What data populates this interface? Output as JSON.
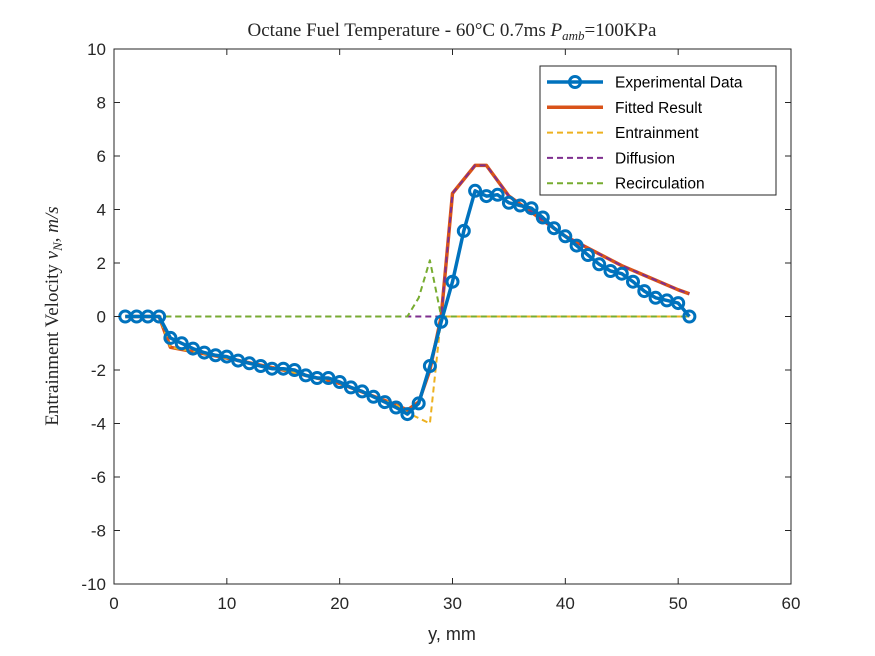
{
  "chart_data": {
    "type": "line",
    "title": "Octane Fuel Temperature - 60°C 0.7ms P_amb=100KPa",
    "title_parts": {
      "prefix": "Octane Fuel Temperature - 60°C 0.7ms ",
      "var": "P",
      "sub": "amb",
      "suffix": "=100KPa"
    },
    "xlabel": "y, mm",
    "ylabel": "Entrainment Velocity v_N, m/s",
    "ylabel_parts": {
      "prefix": "Entrainment Velocity ",
      "var": "v",
      "sub": "N",
      "suffix": ", ",
      "unit": "m/s"
    },
    "xlim": [
      0,
      60
    ],
    "ylim": [
      -10,
      10
    ],
    "xticks": [
      0,
      10,
      20,
      30,
      40,
      50,
      60
    ],
    "yticks": [
      -10,
      -8,
      -6,
      -4,
      -2,
      0,
      2,
      4,
      6,
      8,
      10
    ],
    "grid": false,
    "legend_position": "top-right",
    "series": [
      {
        "name": "Experimental Data",
        "color": "#0072BD",
        "style": "solid-marker",
        "x": [
          1,
          2,
          3,
          4,
          5,
          6,
          7,
          8,
          9,
          10,
          11,
          12,
          13,
          14,
          15,
          16,
          17,
          18,
          19,
          20,
          21,
          22,
          23,
          24,
          25,
          26,
          27,
          28,
          29,
          30,
          31,
          32,
          33,
          34,
          35,
          36,
          37,
          38,
          39,
          40,
          41,
          42,
          43,
          44,
          45,
          46,
          47,
          48,
          49,
          50,
          51
        ],
        "y": [
          0,
          0,
          0,
          0,
          -0.8,
          -1.0,
          -1.2,
          -1.35,
          -1.45,
          -1.5,
          -1.65,
          -1.75,
          -1.85,
          -1.95,
          -1.95,
          -2.0,
          -2.2,
          -2.3,
          -2.3,
          -2.45,
          -2.65,
          -2.8,
          -3.0,
          -3.2,
          -3.4,
          -3.65,
          -3.25,
          -1.85,
          -0.2,
          1.3,
          3.2,
          4.7,
          4.5,
          4.55,
          4.25,
          4.15,
          4.05,
          3.7,
          3.3,
          3.0,
          2.65,
          2.3,
          1.95,
          1.7,
          1.6,
          1.3,
          0.95,
          0.7,
          0.6,
          0.5,
          0.0
        ]
      },
      {
        "name": "Fitted Result",
        "color": "#D95319",
        "style": "solid-thick",
        "x": [
          1,
          2,
          3,
          4,
          5,
          10,
          15,
          20,
          25,
          26,
          27,
          28,
          29,
          30,
          32,
          33,
          35,
          40,
          45,
          50,
          51
        ],
        "y": [
          0,
          0,
          0,
          0,
          -1.15,
          -1.55,
          -2.0,
          -2.5,
          -3.3,
          -3.5,
          -3.2,
          -2.0,
          0.0,
          4.6,
          5.65,
          5.65,
          4.5,
          3.0,
          1.9,
          1.0,
          0.85
        ]
      },
      {
        "name": "Entrainment",
        "color": "#EDB120",
        "style": "dashed",
        "x": [
          1,
          2,
          3,
          4,
          5,
          10,
          15,
          20,
          25,
          26,
          27,
          28,
          29,
          30,
          32,
          33,
          35,
          40,
          45,
          50,
          51
        ],
        "y": [
          0,
          0,
          0,
          0,
          -1.15,
          -1.55,
          -2.0,
          -2.5,
          -3.3,
          -3.6,
          -3.8,
          -4.0,
          0.0,
          0,
          0,
          0,
          0,
          0,
          0,
          0,
          0
        ]
      },
      {
        "name": "Diffusion",
        "color": "#7E2F8E",
        "style": "dashed",
        "x": [
          1,
          28.5,
          29,
          30,
          32,
          33,
          35,
          40,
          45,
          50,
          51
        ],
        "y": [
          0,
          0,
          0,
          4.6,
          5.65,
          5.65,
          4.5,
          3.0,
          1.9,
          1.0,
          0.85
        ]
      },
      {
        "name": "Recirculation",
        "color": "#77AC30",
        "style": "dashed",
        "x": [
          1,
          26,
          27,
          28,
          29,
          30,
          51
        ],
        "y": [
          0,
          0,
          0.7,
          2.1,
          0,
          0,
          0
        ]
      }
    ]
  }
}
